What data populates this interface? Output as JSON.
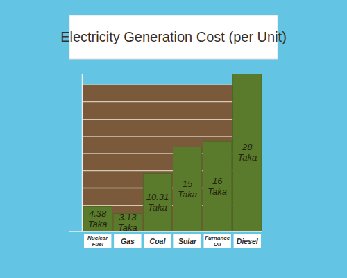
{
  "chart_data": {
    "type": "bar",
    "title": "Electricity Generation Cost (per Unit)",
    "categories": [
      "Nuclear Fuel",
      "Gas",
      "Coal",
      "Solar",
      "Furnance Oil",
      "Diesel"
    ],
    "values": [
      4.38,
      3.13,
      10.31,
      15,
      16,
      28
    ],
    "value_labels": [
      "4.38 Taka",
      "3.13 Taka",
      "10.31 Taka",
      "15 Taka",
      "16 Taka",
      "28 Taka"
    ],
    "color": "#5a7a2c",
    "ylim": [
      0,
      28
    ],
    "yticks": [
      4.6,
      7.7,
      10.8,
      13.8,
      16.9,
      19.9,
      23,
      26
    ],
    "grid": true,
    "data_labels": true,
    "tick_labels": "x"
  }
}
